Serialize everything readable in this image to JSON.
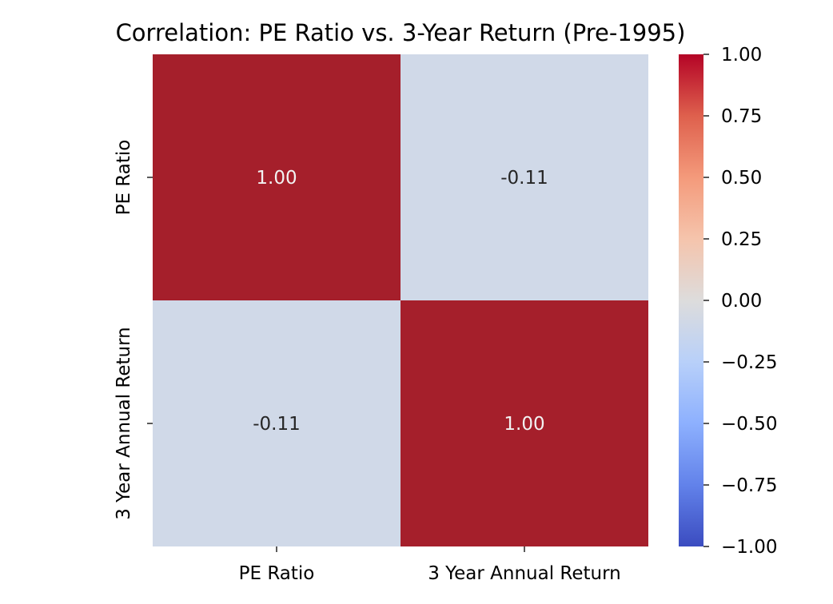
{
  "chart_data": {
    "type": "heatmap",
    "title": "Correlation: PE Ratio vs. 3-Year Return (Pre-1995)",
    "xlabel": "",
    "ylabel": "",
    "rows": [
      "PE Ratio",
      "3 Year Annual Return"
    ],
    "columns": [
      "PE Ratio",
      "3 Year Annual Return"
    ],
    "values": [
      [
        1.0,
        -0.11
      ],
      [
        -0.11,
        1.0
      ]
    ],
    "annotations": [
      [
        "1.00",
        "-0.11"
      ],
      [
        "-0.11",
        "1.00"
      ]
    ],
    "colormap": "coolwarm",
    "vmin": -1.0,
    "vmax": 1.0,
    "colorbar": {
      "ticks": [
        1.0,
        0.75,
        0.5,
        0.25,
        0.0,
        -0.25,
        -0.5,
        -0.75,
        -1.0
      ],
      "tick_labels": [
        "1.00",
        "0.75",
        "0.50",
        "0.25",
        "0.00",
        "−0.25",
        "−0.50",
        "−0.75",
        "−1.00"
      ]
    },
    "colors": {
      "high": "#b40426",
      "mid": "#dddcdc",
      "low": "#3b4cc0",
      "cell_high": "#a51f2b",
      "cell_low": "#d0d9e8",
      "text_on_dark": "#f2f2f2",
      "text_on_light": "#262626"
    }
  }
}
